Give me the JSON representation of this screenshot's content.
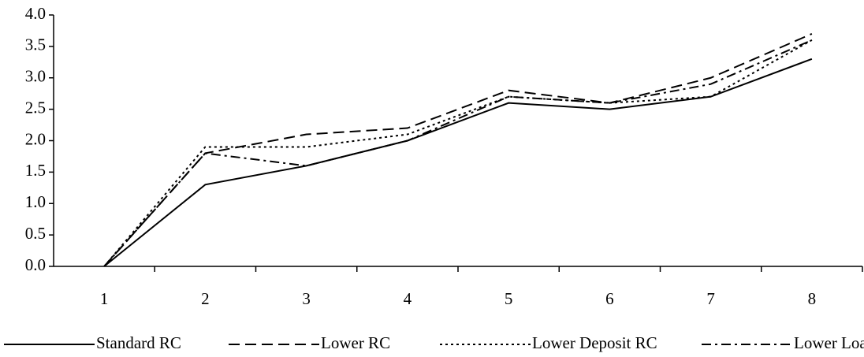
{
  "chart_data": {
    "type": "line",
    "categories": [
      "1",
      "2",
      "3",
      "4",
      "5",
      "6",
      "7",
      "8"
    ],
    "series": [
      {
        "name": "Standard RC",
        "color": "#000000",
        "dash": "solid",
        "values": [
          0,
          1.3,
          1.6,
          2.0,
          2.6,
          2.5,
          2.7,
          3.3
        ]
      },
      {
        "name": "Lower RC",
        "color": "#000000",
        "dash": "dashed",
        "values": [
          0,
          1.8,
          2.1,
          2.2,
          2.8,
          2.6,
          3.0,
          3.7
        ]
      },
      {
        "name": "Lower Deposit RC",
        "color": "#000000",
        "dash": "dotted",
        "values": [
          0,
          1.9,
          1.9,
          2.1,
          2.7,
          2.6,
          2.7,
          3.6
        ]
      },
      {
        "name": "Lower Loan RC",
        "color": "#000000",
        "dash": "dashdot",
        "values": [
          0,
          1.8,
          1.6,
          2.0,
          2.7,
          2.6,
          2.9,
          3.6
        ]
      }
    ],
    "ylim": [
      0,
      4
    ],
    "yticks": [
      {
        "value": 0,
        "label": "0.0"
      },
      0.5,
      {
        "value": 1,
        "label": "1.0"
      },
      1.5,
      {
        "value": 2,
        "label": "2.0"
      },
      2.5,
      {
        "value": 3,
        "label": "3.0"
      },
      3.5,
      {
        "value": 4,
        "label": "4.0"
      }
    ],
    "grid": false,
    "legend": "bottom"
  }
}
